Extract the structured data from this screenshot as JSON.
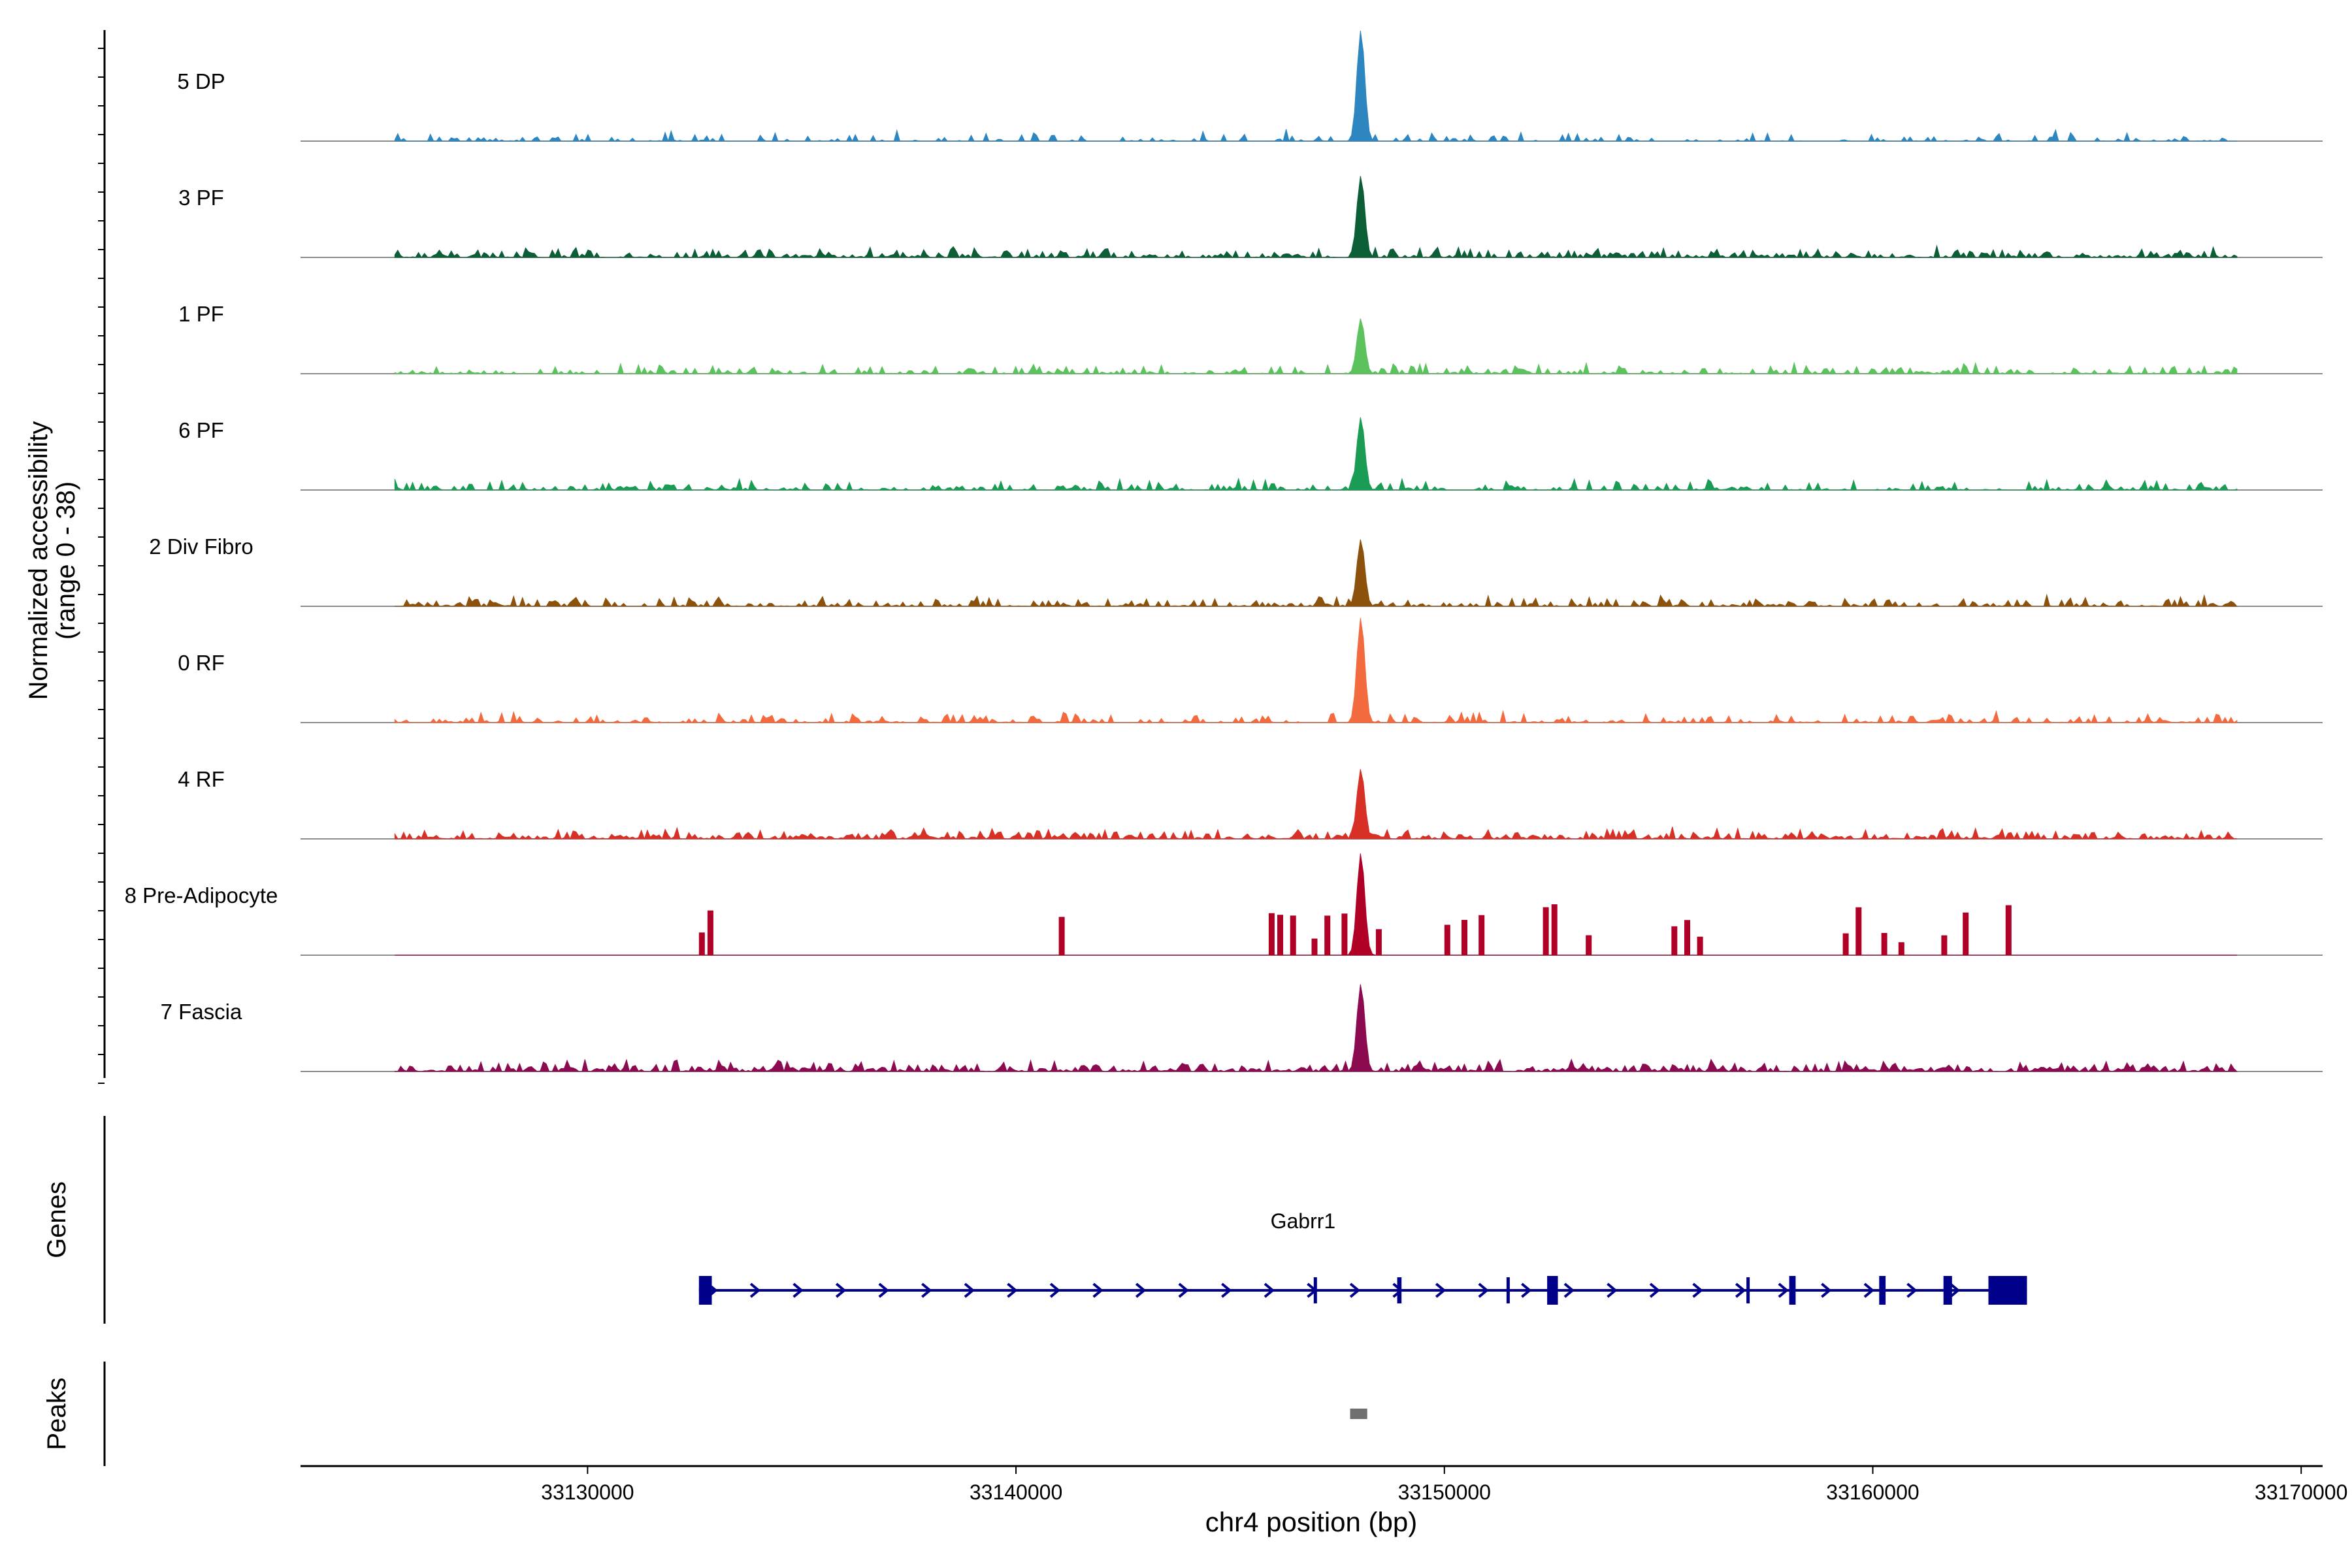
{
  "chart_data": {
    "type": "coverage-track",
    "ylabel": "Normalized accessibility",
    "ylabel_range": "(range 0 - 38)",
    "y_range": [
      0,
      38
    ],
    "xlabel": "chr4 position (bp)",
    "x_range": [
      33123300,
      33170500
    ],
    "x_ticks": [
      33130000,
      33140000,
      33150000,
      33160000,
      33170000
    ],
    "x_tick_labels": [
      "33130000",
      "33140000",
      "33150000",
      "33160000",
      "33170000"
    ],
    "tracks": [
      {
        "name": "5 DP",
        "color": "#2E86C1",
        "peak": 38,
        "density": 0.35,
        "seed": 11,
        "coverage": [
          [
            33125500,
            33168500
          ]
        ]
      },
      {
        "name": "3 PF",
        "color": "#0B5E36",
        "peak": 28,
        "density": 0.75,
        "seed": 23,
        "coverage": [
          [
            33125500,
            33168500
          ]
        ]
      },
      {
        "name": "1 PF",
        "color": "#5CC25E",
        "peak": 19,
        "density": 0.55,
        "seed": 37,
        "coverage": [
          [
            33125500,
            33168500
          ]
        ]
      },
      {
        "name": "6 PF",
        "color": "#1A9C55",
        "peak": 25,
        "density": 0.55,
        "seed": 41,
        "coverage": [
          [
            33125500,
            33168500
          ]
        ]
      },
      {
        "name": "2 Div Fibro",
        "color": "#8C510A",
        "peak": 23,
        "density": 0.6,
        "seed": 53,
        "coverage": [
          [
            33125500,
            33168500
          ]
        ]
      },
      {
        "name": "0 RF",
        "color": "#F26A3E",
        "peak": 36,
        "density": 0.6,
        "seed": 67,
        "coverage": [
          [
            33125500,
            33168500
          ]
        ]
      },
      {
        "name": "4 RF",
        "color": "#D73027",
        "peak": 24,
        "density": 0.8,
        "seed": 79,
        "coverage": [
          [
            33125500,
            33168500
          ]
        ]
      },
      {
        "name": "8 Pre-Adipocyte",
        "color": "#B10026",
        "peak": 35,
        "density": 0.0,
        "seed": 83,
        "coverage": [
          [
            33125500,
            33168500
          ]
        ]
      },
      {
        "name": "7 Fascia",
        "color": "#8B0A50",
        "peak": 30,
        "density": 0.85,
        "seed": 97,
        "coverage": [
          [
            33125500,
            33168500
          ]
        ]
      }
    ],
    "genes_label": "Genes",
    "peaks_label": "Peaks",
    "gene": {
      "name": "Gabrr1",
      "color": "#00008B",
      "start": 33132600,
      "end": 33163600,
      "exons": [
        [
          33132600,
          33132900
        ],
        [
          33146950,
          33147000
        ],
        [
          33148900,
          33149000
        ],
        [
          33151450,
          33151500
        ],
        [
          33152400,
          33152650
        ],
        [
          33157050,
          33157100
        ],
        [
          33158050,
          33158200
        ],
        [
          33160150,
          33160300
        ],
        [
          33161650,
          33161850
        ],
        [
          33162700,
          33163600
        ]
      ]
    },
    "peaks": [
      {
        "start": 33147800,
        "end": 33148200,
        "color": "#707070"
      }
    ]
  }
}
